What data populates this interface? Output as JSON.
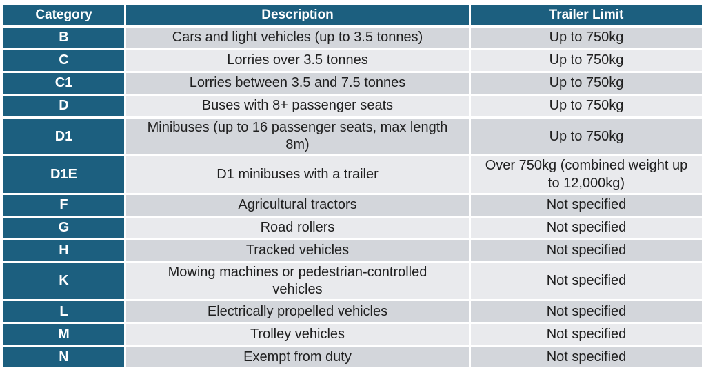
{
  "page": {
    "background": "#FFFFFF"
  },
  "table": {
    "columns": [
      {
        "key": "category",
        "label": "Category"
      },
      {
        "key": "description",
        "label": "Description"
      },
      {
        "key": "trailer_limit",
        "label": "Trailer Limit"
      }
    ],
    "rows": [
      {
        "category": "B",
        "description": "Cars and light vehicles (up to 3.5 tonnes)",
        "trailer_limit": "Up to 750kg"
      },
      {
        "category": "C",
        "description": "Lorries over 3.5 tonnes",
        "trailer_limit": "Up to 750kg"
      },
      {
        "category": "C1",
        "description": "Lorries between 3.5 and 7.5 tonnes",
        "trailer_limit": "Up to 750kg"
      },
      {
        "category": "D",
        "description": "Buses with 8+ passenger seats",
        "trailer_limit": "Up to 750kg"
      },
      {
        "category": "D1",
        "description": "Minibuses (up to 16 passenger seats, max length 8m)",
        "trailer_limit": "Up to 750kg"
      },
      {
        "category": "D1E",
        "description": "D1 minibuses with a trailer",
        "trailer_limit": "Over 750kg (combined weight up to 12,000kg)"
      },
      {
        "category": "F",
        "description": "Agricultural tractors",
        "trailer_limit": "Not specified"
      },
      {
        "category": "G",
        "description": "Road rollers",
        "trailer_limit": "Not specified"
      },
      {
        "category": "H",
        "description": "Tracked vehicles",
        "trailer_limit": "Not specified"
      },
      {
        "category": "K",
        "description": "Mowing machines or pedestrian-controlled vehicles",
        "trailer_limit": "Not specified"
      },
      {
        "category": "L",
        "description": "Electrically propelled vehicles",
        "trailer_limit": "Not specified"
      },
      {
        "category": "M",
        "description": "Trolley vehicles",
        "trailer_limit": "Not specified"
      },
      {
        "category": "N",
        "description": "Exempt from duty",
        "trailer_limit": "Not specified"
      }
    ],
    "colors": {
      "header_bg": "#1C5F7F",
      "category_bg": "#1C5F7F",
      "band_dark": "#D3D6DB",
      "band_light": "#E9EAED",
      "header_text": "#FFFFFF",
      "body_text": "#1F1F1F",
      "separator": "#FFFFFF"
    }
  },
  "chart_data": {
    "type": "table",
    "title": "",
    "columns": [
      "Category",
      "Description",
      "Trailer Limit"
    ],
    "rows": [
      [
        "B",
        "Cars and light vehicles (up to 3.5 tonnes)",
        "Up to 750kg"
      ],
      [
        "C",
        "Lorries over 3.5 tonnes",
        "Up to 750kg"
      ],
      [
        "C1",
        "Lorries between 3.5 and 7.5 tonnes",
        "Up to 750kg"
      ],
      [
        "D",
        "Buses with 8+ passenger seats",
        "Up to 750kg"
      ],
      [
        "D1",
        "Minibuses (up to 16 passenger seats, max length 8m)",
        "Up to 750kg"
      ],
      [
        "D1E",
        "D1 minibuses with a trailer",
        "Over 750kg (combined weight up to 12,000kg)"
      ],
      [
        "F",
        "Agricultural tractors",
        "Not specified"
      ],
      [
        "G",
        "Road rollers",
        "Not specified"
      ],
      [
        "H",
        "Tracked vehicles",
        "Not specified"
      ],
      [
        "K",
        "Mowing machines or pedestrian-controlled vehicles",
        "Not specified"
      ],
      [
        "L",
        "Electrically propelled vehicles",
        "Not specified"
      ],
      [
        "M",
        "Trolley vehicles",
        "Not specified"
      ],
      [
        "N",
        "Exempt from duty",
        "Not specified"
      ]
    ]
  }
}
